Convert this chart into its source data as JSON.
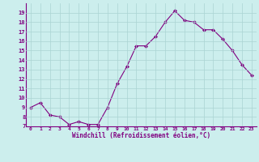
{
  "hours": [
    0,
    1,
    2,
    3,
    4,
    5,
    6,
    7,
    8,
    9,
    10,
    11,
    12,
    13,
    14,
    15,
    16,
    17,
    18,
    19,
    20,
    21,
    22,
    23
  ],
  "values": [
    9.0,
    9.5,
    8.2,
    8.0,
    7.2,
    7.5,
    7.2,
    7.2,
    9.0,
    11.5,
    13.3,
    15.5,
    15.5,
    16.5,
    18.0,
    19.2,
    18.2,
    18.0,
    17.2,
    17.2,
    16.2,
    15.0,
    13.5,
    12.4
  ],
  "line_color": "#800080",
  "marker": "D",
  "marker_size": 2,
  "bg_color": "#cceeed",
  "grid_color": "#aad4d3",
  "xlabel": "Windchill (Refroidissement éolien,°C)",
  "xlabel_color": "#800080",
  "tick_color": "#800080",
  "ylim": [
    7,
    20
  ],
  "yticks": [
    7,
    8,
    9,
    10,
    11,
    12,
    13,
    14,
    15,
    16,
    17,
    18,
    19
  ],
  "xlim": [
    0,
    23
  ],
  "spine_color": "#800080"
}
